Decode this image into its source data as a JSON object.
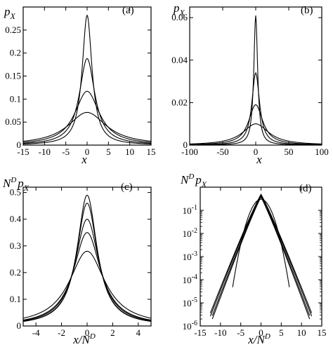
{
  "figure": {
    "panel_labels": [
      "(a)",
      "(b)",
      "(c)",
      "(d)"
    ]
  },
  "chart_data": [
    {
      "type": "line",
      "panel": "(a)",
      "ylabel": "p_X",
      "xlabel": "x",
      "xlim": [
        -15,
        15
      ],
      "ylim": [
        0,
        0.3
      ],
      "xticks": [
        -15,
        -10,
        -5,
        0,
        5,
        10,
        15
      ],
      "yticks": [
        0,
        0.05,
        0.1,
        0.15,
        0.2,
        0.25
      ],
      "ytick_labels": [
        "0",
        "0.05",
        "0.1",
        "0.15",
        "0.2",
        "0.25"
      ],
      "grid": false,
      "series": [
        {
          "peak": 0.282,
          "width": 1.4
        },
        {
          "peak": 0.188,
          "width": 2.2
        },
        {
          "peak": 0.117,
          "width": 3.5
        },
        {
          "peak": 0.071,
          "width": 5.5
        }
      ]
    },
    {
      "type": "line",
      "panel": "(b)",
      "ylabel": "p_X",
      "xlabel": "x",
      "xlim": [
        -100,
        100
      ],
      "ylim": [
        0,
        0.065
      ],
      "xticks": [
        -100,
        -50,
        0,
        50,
        100
      ],
      "yticks": [
        0,
        0.02,
        0.04,
        0.06
      ],
      "ytick_labels": [
        "0",
        "0.02",
        "0.04",
        "0.06"
      ],
      "grid": false,
      "series": [
        {
          "peak": 0.061,
          "width": 3.5
        },
        {
          "peak": 0.034,
          "width": 7
        },
        {
          "peak": 0.019,
          "width": 13
        },
        {
          "peak": 0.01,
          "width": 24
        }
      ]
    },
    {
      "type": "line",
      "panel": "(c)",
      "ylabel": "N^D p_X",
      "xlabel": "x/N^D",
      "xlim": [
        -5,
        5
      ],
      "ylim": [
        0,
        0.52
      ],
      "xticks": [
        -4,
        -2,
        0,
        2,
        4
      ],
      "yticks": [
        0,
        0.1,
        0.2,
        0.3,
        0.4,
        0.5
      ],
      "ytick_labels": [
        "0",
        "0.1",
        "0.2",
        "0.3",
        "0.4",
        "0.5"
      ],
      "grid": false,
      "series": [
        {
          "peak": 0.49,
          "width": 0.95
        },
        {
          "peak": 0.46,
          "width": 1.0
        },
        {
          "peak": 0.4,
          "width": 1.15
        },
        {
          "peak": 0.35,
          "width": 1.3
        },
        {
          "peak": 0.28,
          "width": 1.7
        }
      ]
    },
    {
      "type": "line",
      "panel": "(d)",
      "ylabel": "N^D p_X",
      "xlabel": "x/N^D",
      "xlim": [
        -15,
        15
      ],
      "ylim": [
        1e-06,
        1
      ],
      "yscale": "log",
      "xticks": [
        -15,
        -10,
        -5,
        0,
        5,
        10,
        15
      ],
      "ytick_exponents": [
        -1,
        -2,
        -3,
        -4,
        -5,
        -6
      ],
      "grid": false,
      "series": [
        {
          "peak": 0.49,
          "decay": 1.08,
          "xmax": 12.5
        },
        {
          "peak": 0.46,
          "decay": 1.1,
          "xmax": 12.5
        },
        {
          "peak": 0.42,
          "decay": 1.13,
          "xmax": 12.0
        },
        {
          "peak": 0.38,
          "decay": 1.15,
          "xmax": 12.0
        },
        {
          "peak": 0.3,
          "gauss": true,
          "xmax": 7.0
        }
      ]
    }
  ]
}
